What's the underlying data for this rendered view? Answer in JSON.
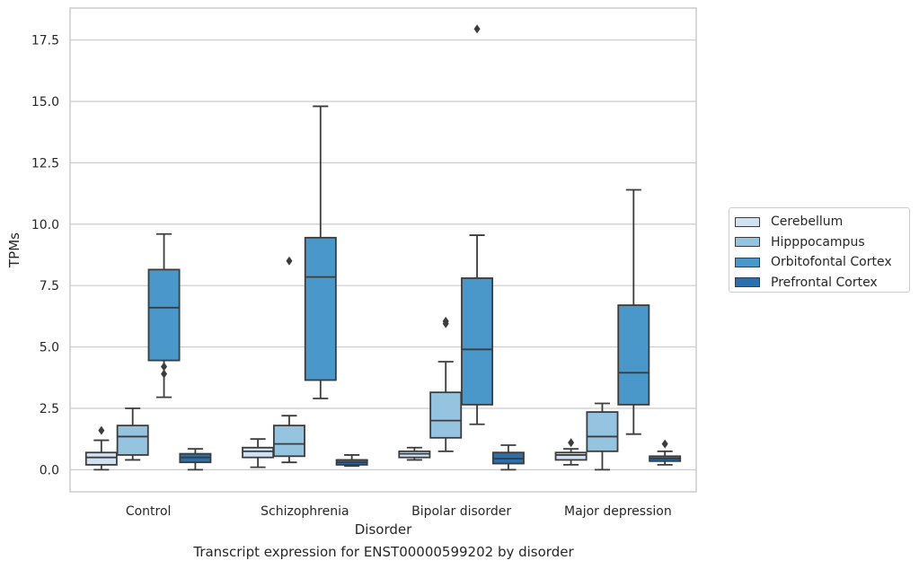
{
  "chart_data": {
    "type": "box",
    "title": "",
    "caption": "Transcript expression for ENST00000599202 by disorder",
    "xlabel": "Disorder",
    "ylabel": "TPMs",
    "ylim": [
      -0.9,
      18.8
    ],
    "yticks": [
      0.0,
      2.5,
      5.0,
      7.5,
      10.0,
      12.5,
      15.0,
      17.5
    ],
    "ytick_labels": [
      "0.0",
      "2.5",
      "5.0",
      "7.5",
      "10.0",
      "12.5",
      "15.0",
      "17.5"
    ],
    "categories": [
      "Control",
      "Schizophrenia",
      "Bipolar disorder",
      "Major depression"
    ],
    "grid": "horizontal",
    "legend_position": "outside-right",
    "series": [
      {
        "name": "Cerebellum",
        "color": "#d0e1f2",
        "boxes": [
          {
            "whisker_low": 0.0,
            "q1": 0.2,
            "median": 0.5,
            "q3": 0.7,
            "whisker_high": 1.2,
            "outliers": [
              1.6
            ]
          },
          {
            "whisker_low": 0.1,
            "q1": 0.5,
            "median": 0.75,
            "q3": 0.9,
            "whisker_high": 1.25,
            "outliers": []
          },
          {
            "whisker_low": 0.4,
            "q1": 0.5,
            "median": 0.65,
            "q3": 0.75,
            "whisker_high": 0.9,
            "outliers": []
          },
          {
            "whisker_low": 0.2,
            "q1": 0.4,
            "median": 0.6,
            "q3": 0.7,
            "whisker_high": 0.85,
            "outliers": [
              1.1
            ]
          }
        ]
      },
      {
        "name": "Hipppocampus",
        "color": "#94c4df",
        "boxes": [
          {
            "whisker_low": 0.4,
            "q1": 0.6,
            "median": 1.35,
            "q3": 1.8,
            "whisker_high": 2.5,
            "outliers": []
          },
          {
            "whisker_low": 0.3,
            "q1": 0.55,
            "median": 1.05,
            "q3": 1.8,
            "whisker_high": 2.2,
            "outliers": [
              8.5
            ]
          },
          {
            "whisker_low": 0.75,
            "q1": 1.3,
            "median": 2.0,
            "q3": 3.15,
            "whisker_high": 4.4,
            "outliers": [
              5.95,
              6.05
            ]
          },
          {
            "whisker_low": 0.0,
            "q1": 0.75,
            "median": 1.35,
            "q3": 2.35,
            "whisker_high": 2.7,
            "outliers": []
          }
        ]
      },
      {
        "name": "Orbitofontal Cortex",
        "color": "#4a98c9",
        "boxes": [
          {
            "whisker_low": 2.95,
            "q1": 4.45,
            "median": 6.6,
            "q3": 8.15,
            "whisker_high": 9.6,
            "outliers": [
              3.9,
              4.2
            ]
          },
          {
            "whisker_low": 2.9,
            "q1": 3.65,
            "median": 7.85,
            "q3": 9.45,
            "whisker_high": 14.8,
            "outliers": []
          },
          {
            "whisker_low": 1.85,
            "q1": 2.65,
            "median": 4.9,
            "q3": 7.8,
            "whisker_high": 9.55,
            "outliers": [
              17.95
            ]
          },
          {
            "whisker_low": 1.45,
            "q1": 2.65,
            "median": 3.95,
            "q3": 6.7,
            "whisker_high": 11.4,
            "outliers": []
          }
        ]
      },
      {
        "name": "Prefrontal Cortex",
        "color": "#2b6fad",
        "boxes": [
          {
            "whisker_low": 0.0,
            "q1": 0.3,
            "median": 0.5,
            "q3": 0.65,
            "whisker_high": 0.85,
            "outliers": []
          },
          {
            "whisker_low": 0.15,
            "q1": 0.2,
            "median": 0.3,
            "q3": 0.4,
            "whisker_high": 0.6,
            "outliers": []
          },
          {
            "whisker_low": 0.0,
            "q1": 0.25,
            "median": 0.45,
            "q3": 0.7,
            "whisker_high": 1.0,
            "outliers": []
          },
          {
            "whisker_low": 0.2,
            "q1": 0.35,
            "median": 0.45,
            "q3": 0.55,
            "whisker_high": 0.75,
            "outliers": [
              1.05
            ]
          }
        ]
      }
    ]
  }
}
